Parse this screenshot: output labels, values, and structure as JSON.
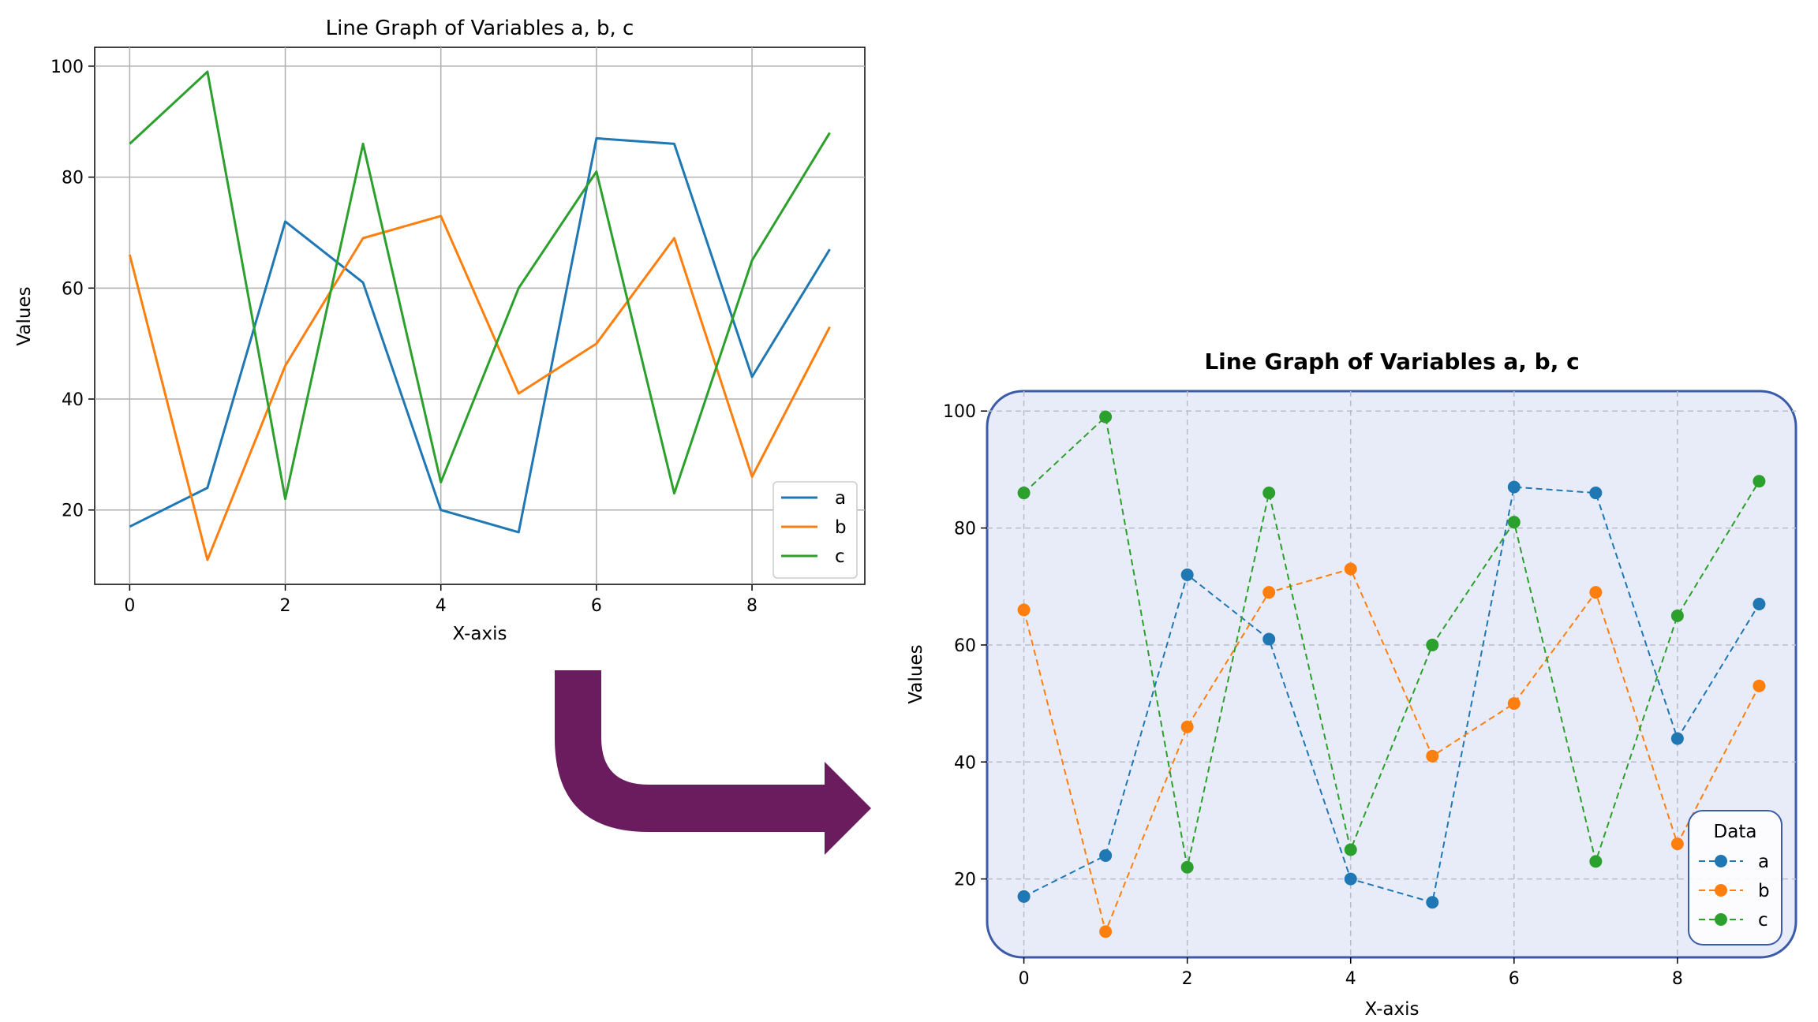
{
  "chart_data": [
    {
      "type": "line",
      "title": "Line Graph of Variables a, b, c",
      "xlabel": "X-axis",
      "ylabel": "Values",
      "x": [
        0,
        1,
        2,
        3,
        4,
        5,
        6,
        7,
        8,
        9
      ],
      "xticks": [
        0,
        2,
        4,
        6,
        8
      ],
      "yticks": [
        20,
        40,
        60,
        80,
        100
      ],
      "xlim": [
        -0.45,
        9.45
      ],
      "ylim": [
        6.6,
        103.4
      ],
      "grid": true,
      "legend_position": "lower-right",
      "legend_title": "",
      "series": [
        {
          "name": "a",
          "color": "#1f77b4",
          "values": [
            17,
            24,
            72,
            61,
            20,
            16,
            87,
            86,
            44,
            67
          ]
        },
        {
          "name": "b",
          "color": "#ff7f0e",
          "values": [
            66,
            11,
            46,
            69,
            73,
            41,
            50,
            69,
            26,
            53
          ]
        },
        {
          "name": "c",
          "color": "#2ca02c",
          "values": [
            86,
            99,
            22,
            86,
            25,
            60,
            81,
            23,
            65,
            88
          ]
        }
      ]
    },
    {
      "type": "line",
      "title": "Line Graph of Variables a, b, c",
      "xlabel": "X-axis",
      "ylabel": "Values",
      "x": [
        0,
        1,
        2,
        3,
        4,
        5,
        6,
        7,
        8,
        9
      ],
      "xticks": [
        0,
        2,
        4,
        6,
        8
      ],
      "yticks": [
        20,
        40,
        60,
        80,
        100
      ],
      "xlim": [
        -0.45,
        9.45
      ],
      "ylim": [
        6.6,
        103.4
      ],
      "grid": true,
      "grid_style": "dashed",
      "markers": true,
      "line_style": "dashed",
      "background": "#e8ecf8",
      "frame_color": "#3b5ba9",
      "legend_position": "lower-right",
      "legend_title": "Data",
      "series": [
        {
          "name": "a",
          "color": "#1f77b4",
          "values": [
            17,
            24,
            72,
            61,
            20,
            16,
            87,
            86,
            44,
            67
          ]
        },
        {
          "name": "b",
          "color": "#ff7f0e",
          "values": [
            66,
            11,
            46,
            69,
            73,
            41,
            50,
            69,
            26,
            53
          ]
        },
        {
          "name": "c",
          "color": "#2ca02c",
          "values": [
            86,
            99,
            22,
            86,
            25,
            60,
            81,
            23,
            65,
            88
          ]
        }
      ]
    }
  ],
  "arrow": {
    "color": "#6b1c5f"
  }
}
